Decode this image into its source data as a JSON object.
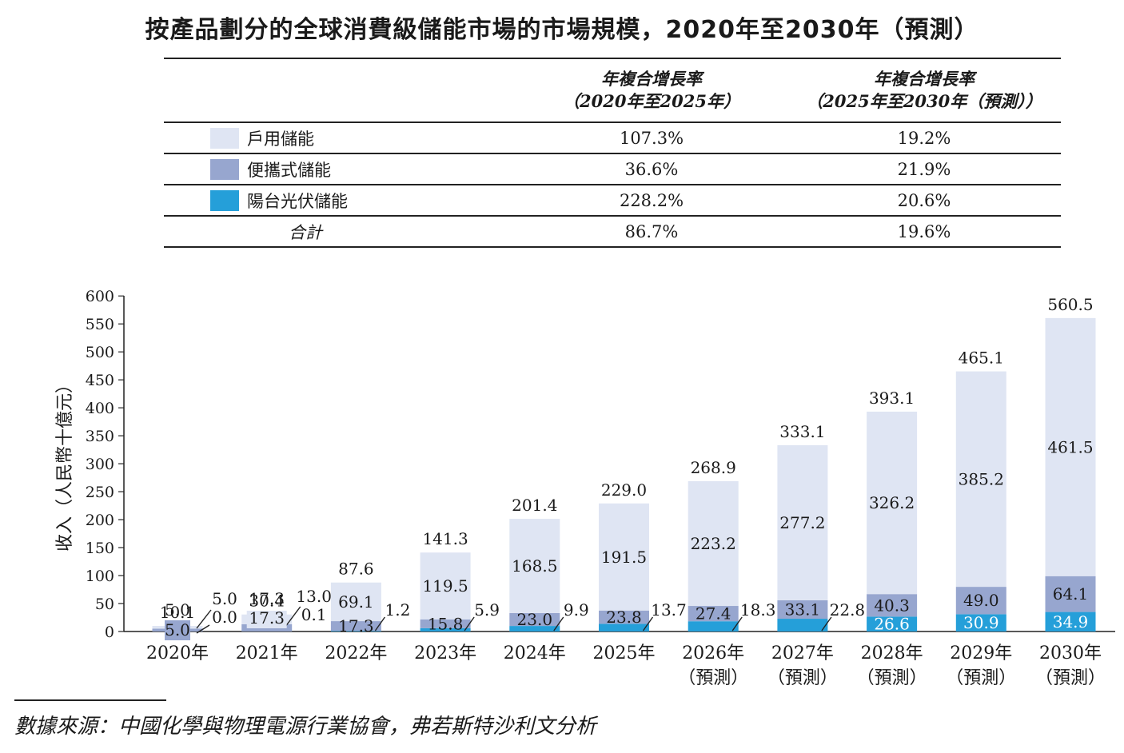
{
  "title": "按產品劃分的全球消費級儲能市場的市場規模，2020年至2030年（預測）",
  "table": {
    "headers": [
      {
        "line1": "年複合增長率",
        "line2": "（2020年至2025年）"
      },
      {
        "line1": "年複合增長率",
        "line2": "（2025年至2030年（預測））"
      }
    ],
    "rows": [
      {
        "label": "戶用儲能",
        "color": "#dfe5f3",
        "v1": "107.3%",
        "v2": "19.2%"
      },
      {
        "label": "便攜式儲能",
        "color": "#97a6cf",
        "v1": "36.6%",
        "v2": "21.9%"
      },
      {
        "label": "陽台光伏儲能",
        "color": "#259fd9",
        "v1": "228.2%",
        "v2": "20.6%"
      }
    ],
    "total": {
      "label": "合計",
      "v1": "86.7%",
      "v2": "19.6%"
    }
  },
  "chart_data": {
    "type": "bar",
    "stacked": true,
    "ylabel": "收入（人民幣十億元）",
    "ylim": [
      0,
      600
    ],
    "yticks": [
      "0",
      "50",
      "100",
      "150",
      "200",
      "250",
      "300",
      "350",
      "400",
      "450",
      "500",
      "550",
      "600"
    ],
    "categories": [
      [
        "2020年"
      ],
      [
        "2021年"
      ],
      [
        "2022年"
      ],
      [
        "2023年"
      ],
      [
        "2024年"
      ],
      [
        "2025年"
      ],
      [
        "2026年",
        "（預測）"
      ],
      [
        "2027年",
        "（預測）"
      ],
      [
        "2028年",
        "（預測）"
      ],
      [
        "2029年",
        "（預測）"
      ],
      [
        "2030年",
        "（預測）"
      ]
    ],
    "series": [
      {
        "name": "陽台光伏儲能",
        "color": "#259fd9",
        "values": [
          0.0,
          0.1,
          1.2,
          5.9,
          9.9,
          13.7,
          18.3,
          22.8,
          26.6,
          30.9,
          34.9
        ],
        "labels": [
          "0.0",
          "0.1",
          "1.2",
          "5.9",
          "9.9",
          "13.7",
          "18.3",
          "22.8",
          "26.6",
          "30.9",
          "34.9"
        ]
      },
      {
        "name": "便攜式儲能",
        "color": "#97a6cf",
        "values": [
          5.0,
          13.0,
          17.3,
          15.8,
          23.0,
          23.8,
          27.4,
          33.1,
          40.3,
          49.0,
          64.1
        ],
        "labels": [
          "5.0",
          "13.0",
          "17.3",
          "15.8",
          "23.0",
          "23.8",
          "27.4",
          "33.1",
          "40.3",
          "49.0",
          "64.1"
        ]
      },
      {
        "name": "戶用儲能",
        "color": "#dfe5f3",
        "values": [
          5.0,
          17.3,
          69.1,
          119.5,
          168.5,
          191.5,
          223.2,
          277.2,
          326.2,
          385.2,
          461.5
        ],
        "labels": [
          "5.0",
          "17.3",
          "69.1",
          "119.5",
          "168.5",
          "191.5",
          "223.2",
          "277.2",
          "326.2",
          "385.2",
          "461.5"
        ]
      }
    ],
    "totals": [
      10.1,
      30.4,
      87.6,
      141.3,
      201.4,
      229.0,
      268.9,
      333.1,
      393.1,
      465.1,
      560.5
    ],
    "total_labels": [
      "10.1",
      "30.4",
      "87.6",
      "141.3",
      "201.4",
      "229.0",
      "268.9",
      "333.1",
      "393.1",
      "465.1",
      "560.5"
    ]
  },
  "source": "數據來源：中國化學與物理電源行業協會，弗若斯特沙利文分析"
}
